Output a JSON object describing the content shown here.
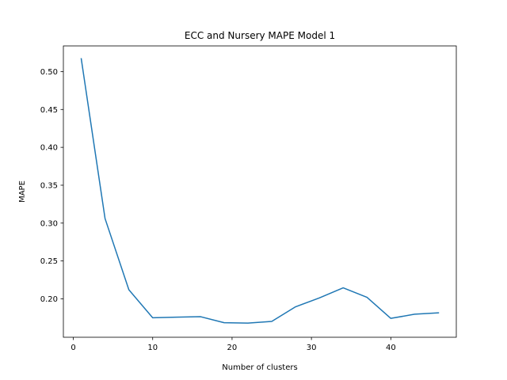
{
  "chart_data": {
    "type": "line",
    "title": "ECC and Nursery MAPE Model 1",
    "xlabel": "Number of clusters",
    "ylabel": "MAPE",
    "xlim": [
      -1.25,
      48.25
    ],
    "ylim": [
      0.1493,
      0.5339
    ],
    "x_ticks": [
      0,
      10,
      20,
      30,
      40
    ],
    "x_tick_labels": [
      "0",
      "10",
      "20",
      "30",
      "40"
    ],
    "y_ticks": [
      0.2,
      0.25,
      0.3,
      0.35,
      0.4,
      0.45,
      0.5
    ],
    "y_tick_labels": [
      "0.20",
      "0.25",
      "0.30",
      "0.35",
      "0.40",
      "0.45",
      "0.50"
    ],
    "grid": false,
    "line_color": "#1f77b4",
    "x": [
      1,
      4,
      7,
      10,
      13,
      16,
      19,
      22,
      25,
      28,
      31,
      34,
      37,
      40,
      43,
      46
    ],
    "series": [
      {
        "values": [
          0.517,
          0.306,
          0.212,
          0.175,
          0.1758,
          0.1765,
          0.1685,
          0.168,
          0.1702,
          0.1895,
          0.2012,
          0.2145,
          0.202,
          0.1742,
          0.1797,
          0.1815
        ]
      }
    ]
  }
}
